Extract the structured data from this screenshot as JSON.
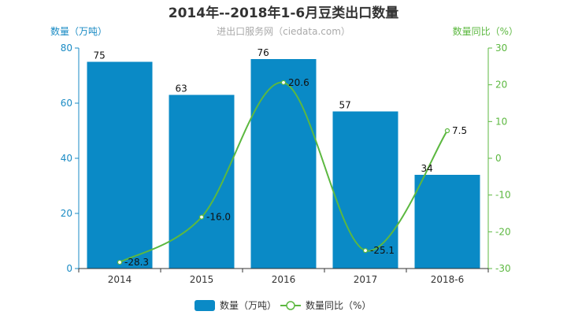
{
  "chart_data": {
    "type": "bar",
    "title": "2014年--2018年1-6月豆类出口数量",
    "subtitle": "进出口服务网（ciedata.com）",
    "categories": [
      "2014",
      "2015",
      "2016",
      "2017",
      "2018-6"
    ],
    "left_axis": {
      "label": "数量（万吨）",
      "ylim": [
        0,
        80
      ],
      "ticks": [
        0,
        20,
        40,
        60,
        80
      ]
    },
    "right_axis": {
      "label": "数量同比（%）",
      "ylim": [
        -30,
        30
      ],
      "ticks": [
        -30,
        -20,
        -10,
        0,
        10,
        20,
        30
      ]
    },
    "series": [
      {
        "name": "数量（万吨）",
        "type": "bar",
        "axis": "left",
        "color": "#0a8ac6",
        "values": [
          75,
          63,
          76,
          57,
          34
        ]
      },
      {
        "name": "数量同比（%）",
        "type": "line",
        "axis": "right",
        "color": "#5cb840",
        "smooth": true,
        "values": [
          -28.3,
          -16.0,
          20.6,
          -25.1,
          7.5
        ],
        "labels": [
          "-28.3",
          "-16.0",
          "20.6",
          "-25.1",
          "7.5"
        ]
      }
    ],
    "grid": false,
    "legend_position": "bottom-center"
  }
}
